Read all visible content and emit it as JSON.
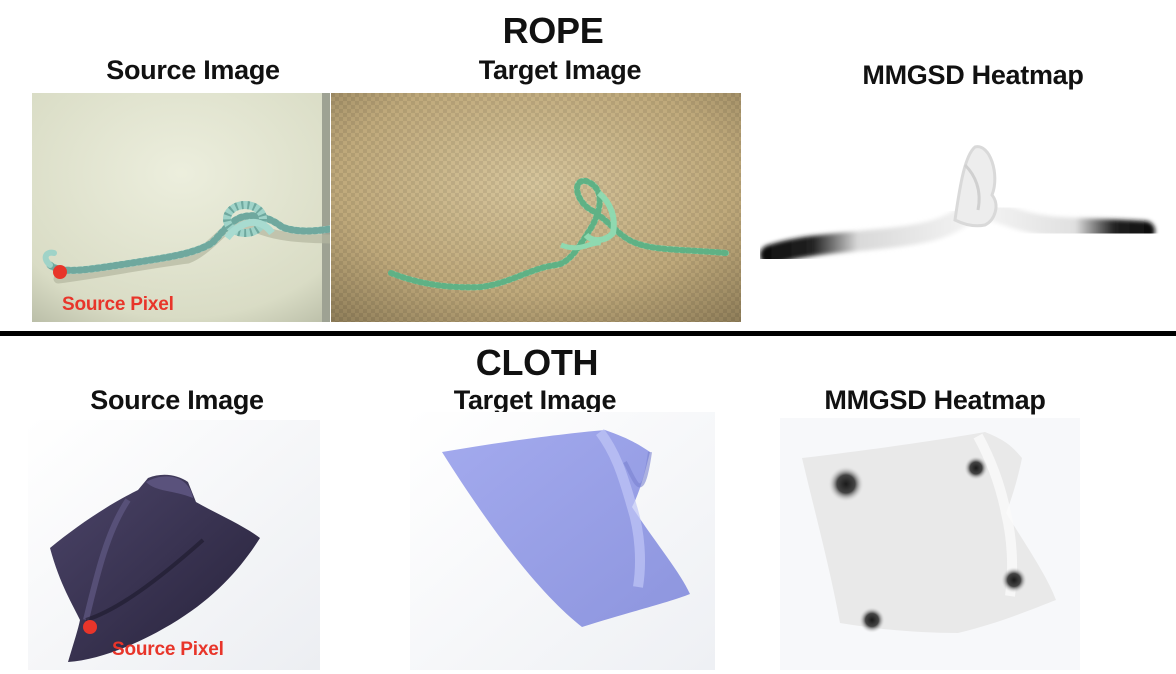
{
  "rope": {
    "title": "ROPE",
    "source_title": "Source Image",
    "target_title": "Target Image",
    "heatmap_title": "MMGSD Heatmap",
    "source_pixel_label": "Source Pixel"
  },
  "cloth": {
    "title": "CLOTH",
    "source_title": "Source Image",
    "target_title": "Target Image",
    "heatmap_title": "MMGSD Heatmap",
    "source_pixel_label": "Source Pixel"
  },
  "colors": {
    "source_pixel": "#e8352a",
    "rope": "#9fd3c8",
    "target_rope": "#8fd9b0",
    "source_cloth": "#3a3352",
    "target_cloth": "#98a0e6",
    "heatmap_cloth": "#e9e9e9"
  }
}
